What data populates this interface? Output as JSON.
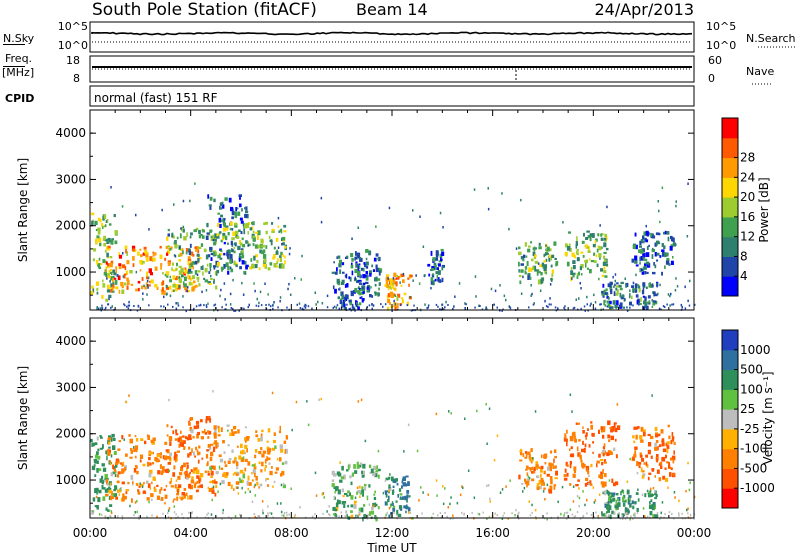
{
  "header": {
    "station": "South Pole Station (fitACF)",
    "beam": "Beam 14",
    "date": "24/Apr/2013"
  },
  "strips": {
    "nsky_label": "N.Sky",
    "nsky_top": "10^5",
    "nsky_bottom": "10^0",
    "nsearch_label": "N.Search",
    "nsearch_top": "10^5",
    "nsearch_bottom": "10^0",
    "freq_label": "Freq.",
    "freq_unit": "[MHz]",
    "freq_top": "18",
    "freq_bottom": "8",
    "nave_label": "Nave",
    "nave_top": "60",
    "nave_bottom": "0",
    "cpid_label": "CPID",
    "cpid_value": "normal (fast) 151 RF"
  },
  "axes": {
    "ylabel": "Slant Range [km]",
    "xlabel": "Time UT",
    "xticks": [
      "00:00",
      "04:00",
      "08:00",
      "12:00",
      "16:00",
      "20:00",
      "00:00"
    ],
    "yticks": [
      "1000",
      "2000",
      "3000",
      "4000"
    ]
  },
  "colorbars": {
    "power": {
      "label": "Power [dB]",
      "ticks": [
        "4",
        "8",
        "12",
        "16",
        "20",
        "24",
        "28"
      ],
      "colors": [
        "#0000ff",
        "#1f45a8",
        "#2f7f6f",
        "#3fa050",
        "#9ccc2f",
        "#ffd700",
        "#ff9a00",
        "#ff5a00",
        "#ff0000"
      ]
    },
    "velocity": {
      "label": "Velocity [m s⁻¹]",
      "ticks": [
        "1000",
        "500",
        "100",
        "25",
        "-25",
        "-100",
        "-500",
        "-1000"
      ],
      "colors": [
        "#1f3fbf",
        "#2f70a0",
        "#2f8f5a",
        "#60c040",
        "#bdbdbd",
        "#ffb000",
        "#ff8000",
        "#ff5000",
        "#ff0000"
      ]
    }
  },
  "chart_data": [
    {
      "type": "heatmap",
      "title": "Power",
      "x_range_hours": [
        0,
        24
      ],
      "y_range_km": [
        180,
        4500
      ],
      "regions": [
        {
          "t_start": 0.0,
          "t_end": 1.0,
          "r_low": 400,
          "r_high": 2300,
          "value": 14
        },
        {
          "t_start": 0.6,
          "t_end": 4.3,
          "r_low": 600,
          "r_high": 1600,
          "value": 24
        },
        {
          "t_start": 3.0,
          "t_end": 5.0,
          "r_low": 700,
          "r_high": 2000,
          "value": 12
        },
        {
          "t_start": 4.6,
          "t_end": 6.2,
          "r_low": 1000,
          "r_high": 2700,
          "value": 6
        },
        {
          "t_start": 5.0,
          "t_end": 7.8,
          "r_low": 1100,
          "r_high": 2100,
          "value": 14
        },
        {
          "t_start": 9.6,
          "t_end": 10.8,
          "r_low": 200,
          "r_high": 1400,
          "value": 5
        },
        {
          "t_start": 10.3,
          "t_end": 11.5,
          "r_low": 500,
          "r_high": 1500,
          "value": 6
        },
        {
          "t_start": 11.7,
          "t_end": 12.7,
          "r_low": 250,
          "r_high": 1000,
          "value": 24
        },
        {
          "t_start": 13.4,
          "t_end": 14.0,
          "r_low": 800,
          "r_high": 1500,
          "value": 6
        },
        {
          "t_start": 17.0,
          "t_end": 18.5,
          "r_low": 800,
          "r_high": 1700,
          "value": 12
        },
        {
          "t_start": 18.8,
          "t_end": 20.5,
          "r_low": 900,
          "r_high": 1900,
          "value": 14
        },
        {
          "t_start": 20.3,
          "t_end": 22.5,
          "r_low": 250,
          "r_high": 800,
          "value": 8
        },
        {
          "t_start": 21.5,
          "t_end": 23.2,
          "r_low": 1000,
          "r_high": 1900,
          "value": 6
        }
      ]
    },
    {
      "type": "heatmap",
      "title": "Velocity",
      "x_range_hours": [
        0,
        24
      ],
      "y_range_km": [
        180,
        4500
      ],
      "regions": [
        {
          "t_start": 0.0,
          "t_end": 1.0,
          "r_low": 300,
          "r_high": 2000,
          "value": 200
        },
        {
          "t_start": 0.6,
          "t_end": 4.3,
          "r_low": 600,
          "r_high": 2000,
          "value": -300
        },
        {
          "t_start": 3.0,
          "t_end": 5.0,
          "r_low": 700,
          "r_high": 2400,
          "value": -500
        },
        {
          "t_start": 4.6,
          "t_end": 7.8,
          "r_low": 900,
          "r_high": 2200,
          "value": -100
        },
        {
          "t_start": 9.6,
          "t_end": 11.5,
          "r_low": 200,
          "r_high": 1400,
          "value": 100
        },
        {
          "t_start": 11.7,
          "t_end": 12.7,
          "r_low": 250,
          "r_high": 1100,
          "value": 500
        },
        {
          "t_start": 17.0,
          "t_end": 18.5,
          "r_low": 800,
          "r_high": 1700,
          "value": -300
        },
        {
          "t_start": 18.8,
          "t_end": 21.0,
          "r_low": 900,
          "r_high": 2300,
          "value": -500
        },
        {
          "t_start": 20.3,
          "t_end": 22.5,
          "r_low": 250,
          "r_high": 800,
          "value": 300
        },
        {
          "t_start": 21.5,
          "t_end": 23.2,
          "r_low": 1000,
          "r_high": 2200,
          "value": -500
        }
      ]
    }
  ]
}
